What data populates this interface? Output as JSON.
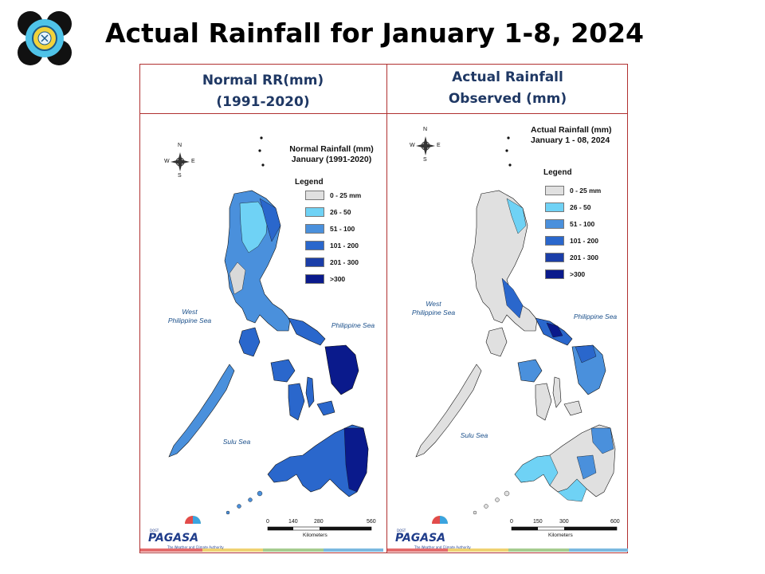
{
  "slide_title": "Actual Rainfall for January 1-8, 2024",
  "colors": {
    "frame": "#b03030",
    "header_text": "#1f3864",
    "land_base": "#d9d9d9",
    "rain_0_25": "#e0e0e0",
    "rain_26_50": "#6fd2f5",
    "rain_51_100": "#4a90dc",
    "rain_101_200": "#2a67cc",
    "rain_201_300": "#1b3ea8",
    "rain_300p": "#0a1a8c"
  },
  "columns": [
    {
      "header_line1": "Normal RR(mm)",
      "header_line2": "(1991-2020)"
    },
    {
      "header_line1": "Actual Rainfall",
      "header_line2": "Observed  (mm)"
    }
  ],
  "left_map": {
    "title_line1": "Normal Rainfall (mm)",
    "title_line2": "January (1991-2020)",
    "legend_title": "Legend",
    "legend": [
      "0 - 25 mm",
      "26 - 50",
      "51 - 100",
      "101 - 200",
      "201 - 300",
      ">300"
    ],
    "sea_west": "West\nPhilippine Sea",
    "sea_east": "Philippine Sea",
    "sea_sulu": "Sulu Sea",
    "scale": [
      "0",
      "140",
      "280",
      "560"
    ],
    "scale_unit": "Kilometers",
    "compass": [
      "N",
      "S",
      "E",
      "W"
    ]
  },
  "right_map": {
    "title_line1": "Actual Rainfall (mm)",
    "title_line2": "January 1 - 08, 2024",
    "legend_title": "Legend",
    "legend": [
      "0 - 25 mm",
      "26 - 50",
      "51 - 100",
      "101 - 200",
      "201 - 300",
      ">300"
    ],
    "sea_west": "West\nPhilippine Sea",
    "sea_east": "Philippine Sea",
    "sea_sulu": "Sulu Sea",
    "scale": [
      "0",
      "150",
      "300",
      "600"
    ],
    "scale_unit": "Kilometers",
    "compass": [
      "N",
      "S",
      "E",
      "W"
    ]
  },
  "pagasa_logo_text": "PAGASA",
  "pagasa_tagline": "The Weather and Climate Authority",
  "pagasa_dost": "DOST"
}
